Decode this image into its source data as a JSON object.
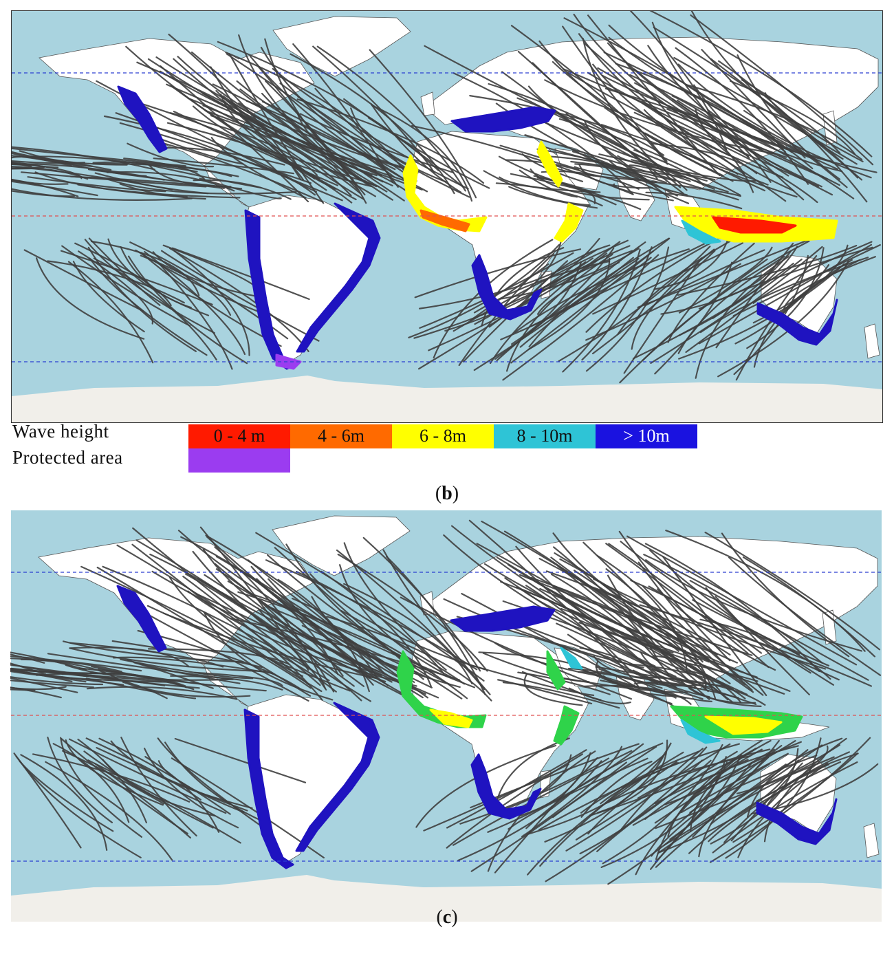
{
  "legend": {
    "wave_height_label": "Wave height",
    "protected_area_label": "Protected area",
    "categories": [
      {
        "label": "0 - 4 m",
        "color": "#ff1a00",
        "text_color": "#111111"
      },
      {
        "label": "4 - 6m",
        "color": "#ff6a00",
        "text_color": "#111111"
      },
      {
        "label": "6 - 8m",
        "color": "#ffff00",
        "text_color": "#111111"
      },
      {
        "label": "8 - 10m",
        "color": "#2ec4d6",
        "text_color": "#111111"
      },
      {
        "label": "> 10m",
        "color": "#1a12e0",
        "text_color": "#ffffff"
      }
    ],
    "protected_color": "#9b3cf0"
  },
  "captions": {
    "b": {
      "open": "(",
      "letter": "b",
      "close": ")"
    },
    "c": {
      "open": "(",
      "letter": "c",
      "close": ")"
    }
  },
  "colors": {
    "ocean": "#a9d3df",
    "land": "#ffffff",
    "antarctica": "#f1efea",
    "tracks": "#3f3f3f",
    "tropic_line": "#2a3fd0",
    "equator_line": "#e05050",
    "coast_blue": "#1f13c0",
    "coast_green": "#2fd34a"
  }
}
